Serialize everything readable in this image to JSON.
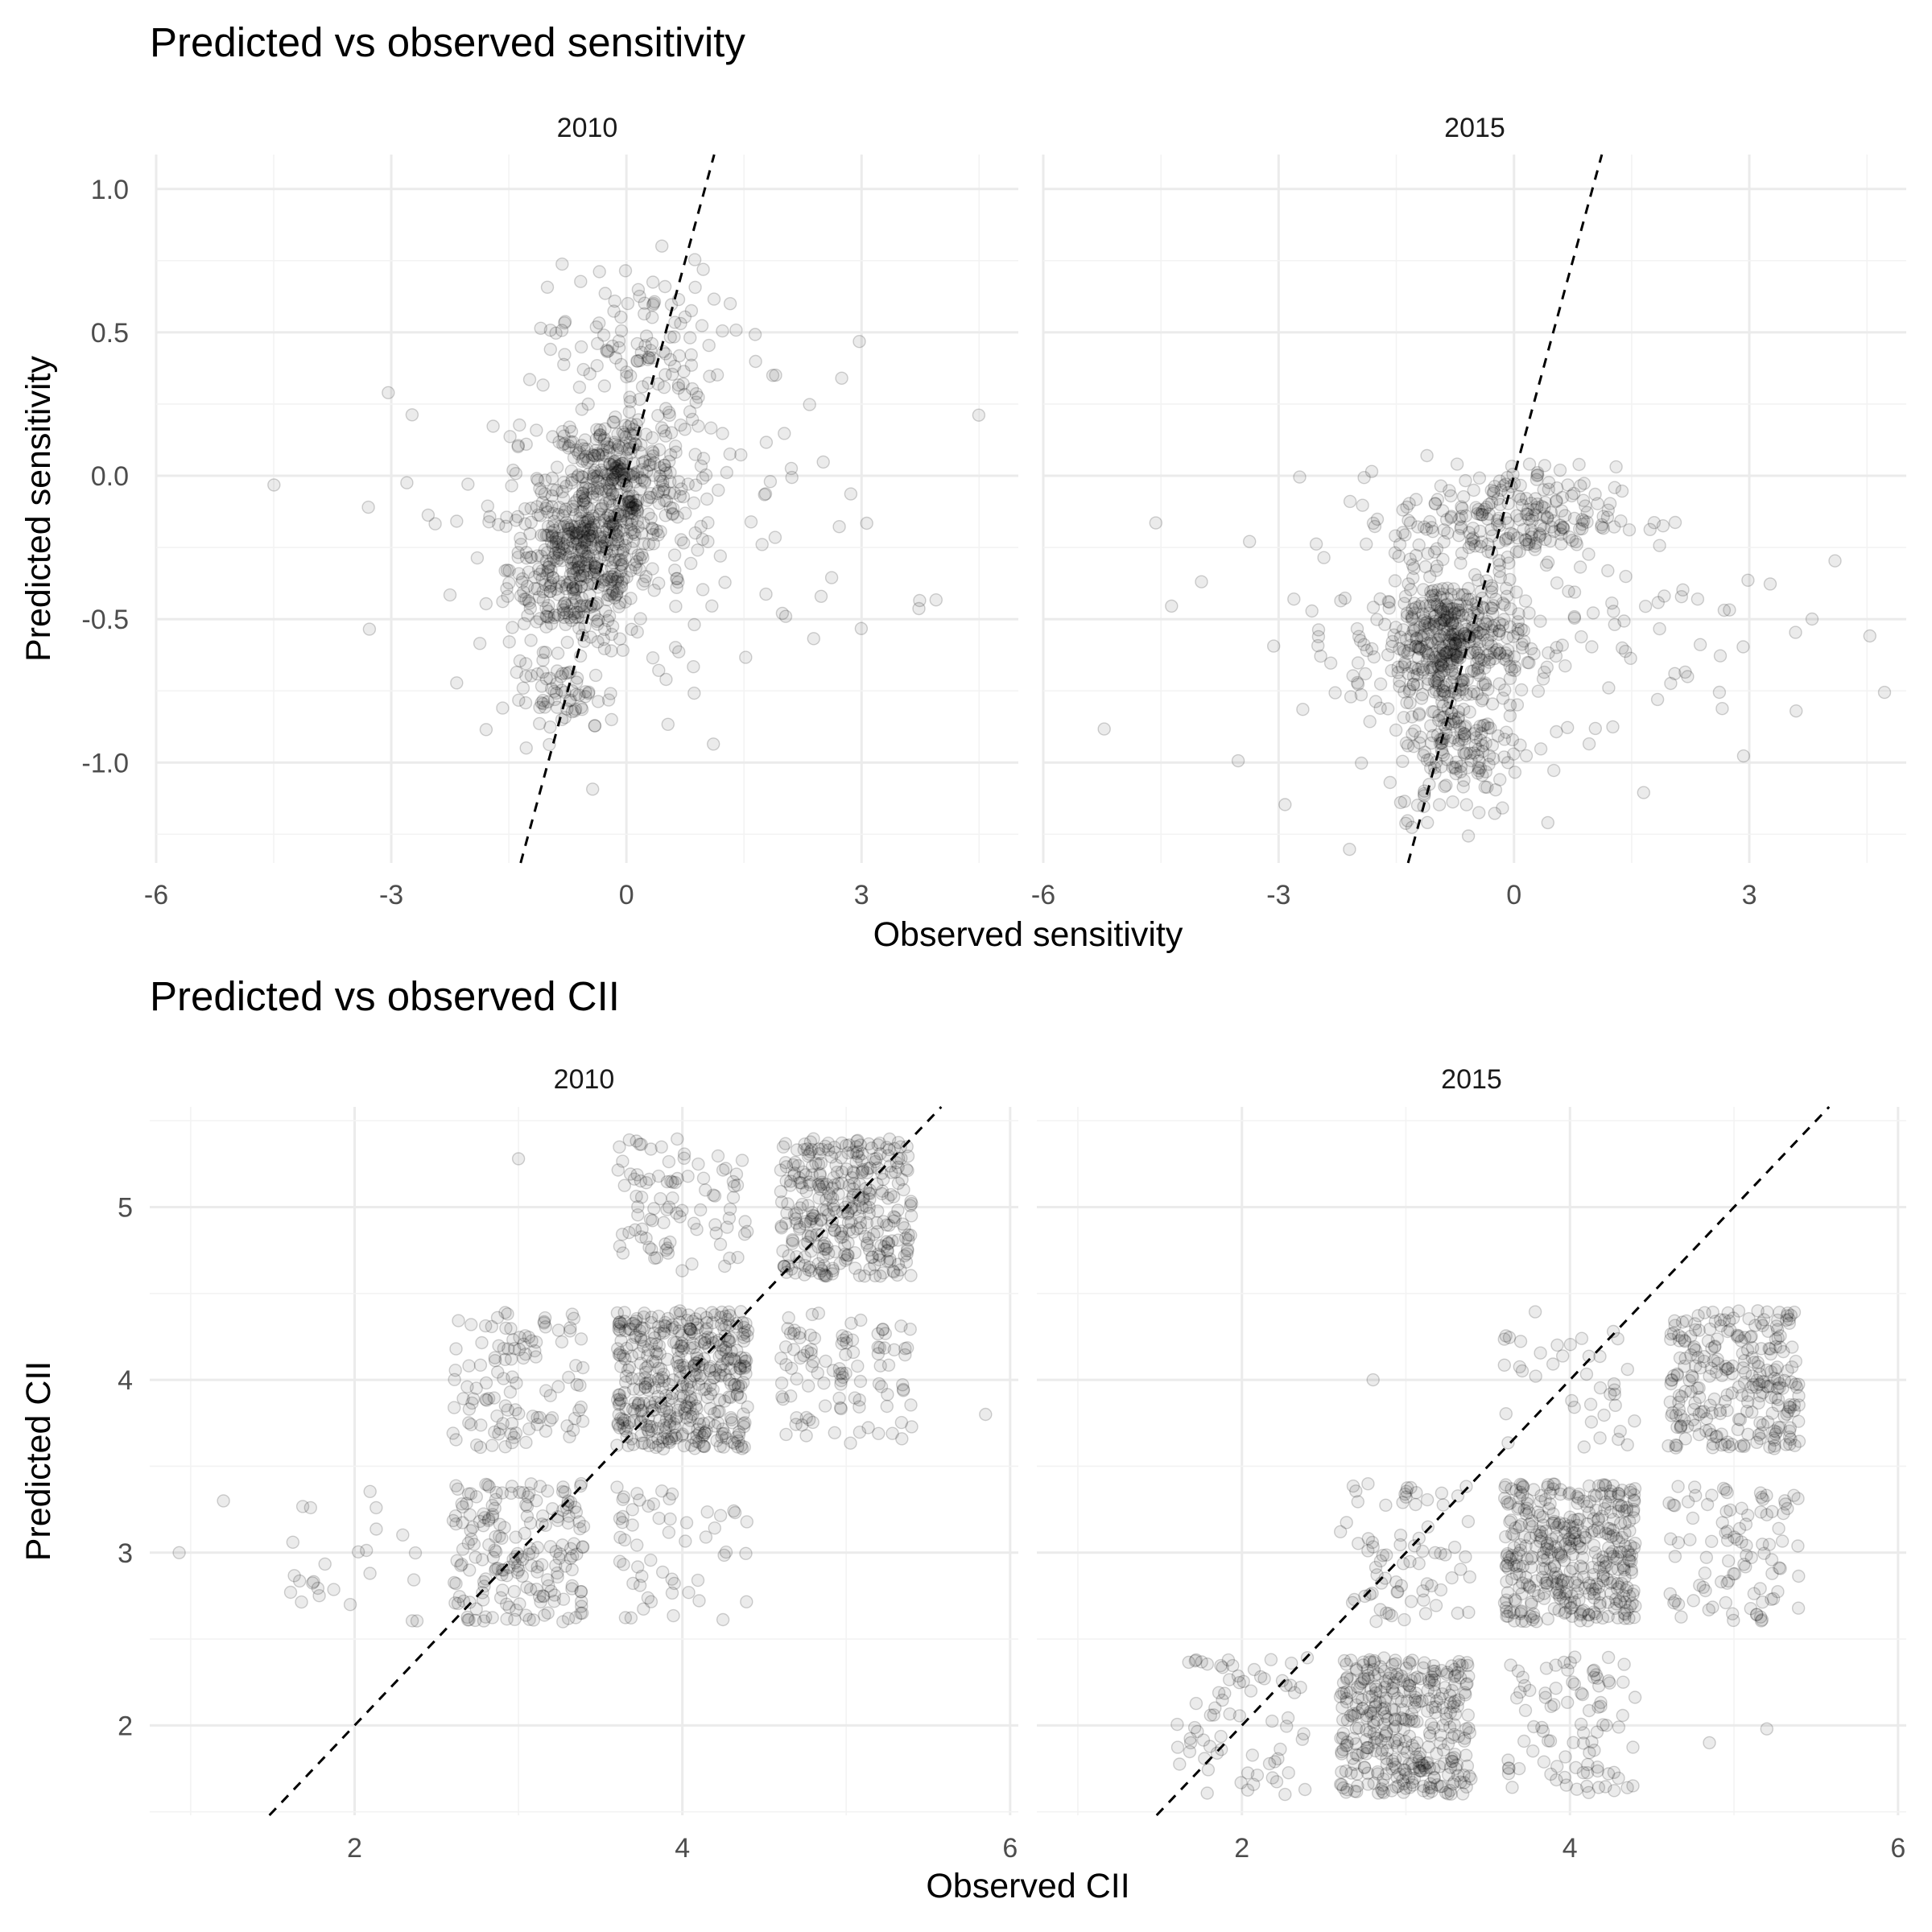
{
  "chart_data": [
    {
      "type": "scatter",
      "title": "Predicted vs observed sensitivity",
      "xlabel": "Observed sensitivity",
      "ylabel": "Predicted sensitivity",
      "xlim": [
        -6,
        5
      ],
      "ylim": [
        -1.35,
        1.12
      ],
      "x_ticks": [
        -6,
        -3,
        0,
        3
      ],
      "x_tick_labels": [
        "-6",
        "-3",
        "0",
        "3"
      ],
      "y_ticks": [
        -1.0,
        -0.5,
        0.0,
        0.5,
        1.0
      ],
      "y_tick_labels": [
        "-1.0",
        "-0.5",
        "0.0",
        "0.5",
        "1.0"
      ],
      "reference_line": {
        "slope": 1,
        "intercept": 0,
        "style": "dashed"
      },
      "grid": true,
      "point_alpha": 0.1,
      "facets": [
        {
          "label": "2010",
          "clusters": [
            {
              "x": -0.6,
              "y": -0.32,
              "sx": 0.45,
              "sy": 0.14,
              "n": 420
            },
            {
              "x": -0.1,
              "y": -0.02,
              "sx": 0.45,
              "sy": 0.12,
              "n": 320
            },
            {
              "x": 0.1,
              "y": 0.45,
              "sx": 0.55,
              "sy": 0.15,
              "n": 110
            },
            {
              "x": 0.3,
              "y": -0.15,
              "sx": 1.6,
              "sy": 0.3,
              "n": 160
            },
            {
              "x": -0.8,
              "y": -0.78,
              "sx": 0.35,
              "sy": 0.06,
              "n": 60
            }
          ]
        },
        {
          "label": "2015",
          "clusters": [
            {
              "x": -0.8,
              "y": -0.58,
              "sx": 0.45,
              "sy": 0.12,
              "n": 420
            },
            {
              "x": -0.1,
              "y": -0.15,
              "sx": 0.7,
              "sy": 0.09,
              "n": 220
            },
            {
              "x": -0.7,
              "y": -0.95,
              "sx": 0.4,
              "sy": 0.12,
              "n": 140
            },
            {
              "x": -0.2,
              "y": -0.55,
              "sx": 1.8,
              "sy": 0.25,
              "n": 160
            }
          ]
        }
      ]
    },
    {
      "type": "scatter",
      "title": "Predicted vs observed CII",
      "xlabel": "Observed CII",
      "ylabel": "Predicted CII",
      "xlim": [
        0.75,
        6.05
      ],
      "ylim": [
        1.48,
        5.58
      ],
      "x_ticks": [
        2,
        4,
        6
      ],
      "x_tick_labels": [
        "2",
        "4",
        "6"
      ],
      "y_ticks": [
        2,
        3,
        4,
        5
      ],
      "y_tick_labels": [
        "2",
        "3",
        "4",
        "5"
      ],
      "reference_line": {
        "slope": 1,
        "intercept": 0,
        "style": "dashed"
      },
      "grid": true,
      "point_alpha": 0.1,
      "facets": [
        {
          "label": "2010",
          "blocks": [
            {
              "x": [
                2.6,
                3.4
              ],
              "y": [
                2.6,
                3.4
              ],
              "n": 190
            },
            {
              "x": [
                3.6,
                4.4
              ],
              "y": [
                2.6,
                3.4
              ],
              "n": 55
            },
            {
              "x": [
                2.6,
                3.4
              ],
              "y": [
                3.6,
                4.4
              ],
              "n": 110
            },
            {
              "x": [
                3.6,
                4.4
              ],
              "y": [
                3.6,
                4.4
              ],
              "n": 430
            },
            {
              "x": [
                4.6,
                5.4
              ],
              "y": [
                3.6,
                4.4
              ],
              "n": 100
            },
            {
              "x": [
                3.6,
                4.4
              ],
              "y": [
                4.6,
                5.4
              ],
              "n": 90
            },
            {
              "x": [
                4.6,
                5.4
              ],
              "y": [
                4.6,
                5.4
              ],
              "n": 330
            },
            {
              "x": [
                1.6,
                2.4
              ],
              "y": [
                2.6,
                3.4
              ],
              "n": 25
            }
          ],
          "outliers": [
            [
              0.93,
              3.0
            ],
            [
              1.2,
              3.3
            ],
            [
              5.85,
              3.8
            ],
            [
              3.0,
              5.28
            ]
          ]
        },
        {
          "label": "2015",
          "blocks": [
            {
              "x": [
                1.6,
                2.4
              ],
              "y": [
                1.6,
                2.4
              ],
              "n": 70
            },
            {
              "x": [
                2.6,
                3.4
              ],
              "y": [
                1.6,
                2.4
              ],
              "n": 370
            },
            {
              "x": [
                3.6,
                4.4
              ],
              "y": [
                1.6,
                2.4
              ],
              "n": 90
            },
            {
              "x": [
                2.6,
                3.4
              ],
              "y": [
                2.6,
                3.4
              ],
              "n": 75
            },
            {
              "x": [
                3.6,
                4.4
              ],
              "y": [
                2.6,
                3.4
              ],
              "n": 400
            },
            {
              "x": [
                4.6,
                5.4
              ],
              "y": [
                2.6,
                3.4
              ],
              "n": 95
            },
            {
              "x": [
                3.6,
                4.4
              ],
              "y": [
                3.6,
                4.4
              ],
              "n": 40
            },
            {
              "x": [
                4.6,
                5.4
              ],
              "y": [
                3.6,
                4.4
              ],
              "n": 260
            }
          ],
          "outliers": [
            [
              2.8,
              4.0
            ],
            [
              4.85,
              1.9
            ],
            [
              5.2,
              1.98
            ]
          ]
        }
      ]
    }
  ]
}
